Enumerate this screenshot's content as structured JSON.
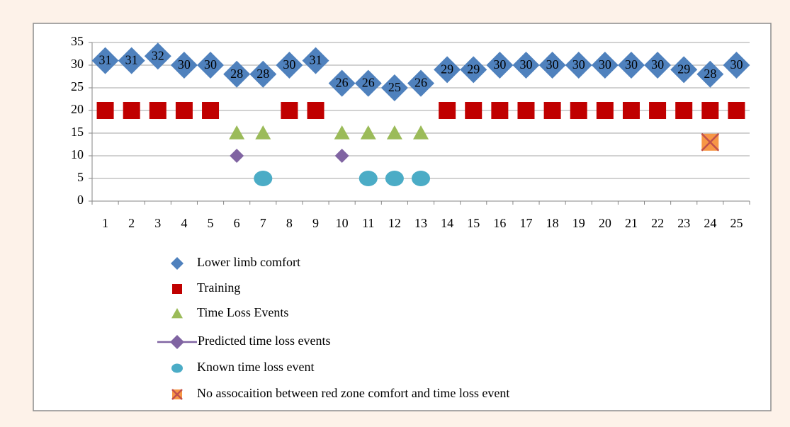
{
  "chart_data": {
    "type": "scatter",
    "categories": [
      1,
      2,
      3,
      4,
      5,
      6,
      7,
      8,
      9,
      10,
      11,
      12,
      13,
      14,
      15,
      16,
      17,
      18,
      19,
      20,
      21,
      22,
      23,
      24,
      25
    ],
    "ylim": [
      0,
      35
    ],
    "yticks": [
      0,
      5,
      10,
      15,
      20,
      25,
      30,
      35
    ],
    "grid": true,
    "series": [
      {
        "name": "Lower limb comfort",
        "color": "#4f81bd",
        "marker": "diamond",
        "data_labels": true,
        "values": [
          31,
          31,
          32,
          30,
          30,
          28,
          28,
          30,
          31,
          26,
          26,
          25,
          26,
          29,
          29,
          30,
          30,
          30,
          30,
          30,
          30,
          30,
          29,
          28,
          30
        ]
      },
      {
        "name": "Training",
        "color": "#c00000",
        "marker": "square",
        "values": [
          20,
          20,
          20,
          20,
          20,
          null,
          null,
          20,
          20,
          null,
          null,
          null,
          null,
          20,
          20,
          20,
          20,
          20,
          20,
          20,
          20,
          20,
          20,
          20,
          20
        ]
      },
      {
        "name": "Time Loss Events",
        "color": "#9bbb59",
        "marker": "triangle",
        "values": [
          null,
          null,
          null,
          null,
          null,
          15,
          15,
          null,
          null,
          15,
          15,
          15,
          15,
          null,
          null,
          null,
          null,
          null,
          null,
          null,
          null,
          null,
          null,
          null,
          null
        ]
      },
      {
        "name": "Predicted time loss events",
        "color": "#8064a2",
        "marker": "diamond-line",
        "values": [
          null,
          null,
          null,
          null,
          null,
          10,
          null,
          null,
          null,
          10,
          null,
          null,
          null,
          null,
          null,
          null,
          null,
          null,
          null,
          null,
          null,
          null,
          null,
          null,
          null
        ]
      },
      {
        "name": "Known time loss event",
        "color": "#4bacc6",
        "marker": "circle",
        "values": [
          null,
          null,
          null,
          null,
          null,
          null,
          5,
          null,
          null,
          null,
          5,
          5,
          5,
          null,
          null,
          null,
          null,
          null,
          null,
          null,
          null,
          null,
          null,
          null,
          null
        ]
      },
      {
        "name": "No assocaition between red zone comfort and time loss event",
        "color": "#f79646",
        "marker": "x-square",
        "values": [
          null,
          null,
          null,
          null,
          null,
          null,
          null,
          null,
          null,
          null,
          null,
          null,
          null,
          null,
          null,
          null,
          null,
          null,
          null,
          null,
          null,
          null,
          null,
          13,
          null
        ]
      }
    ]
  }
}
